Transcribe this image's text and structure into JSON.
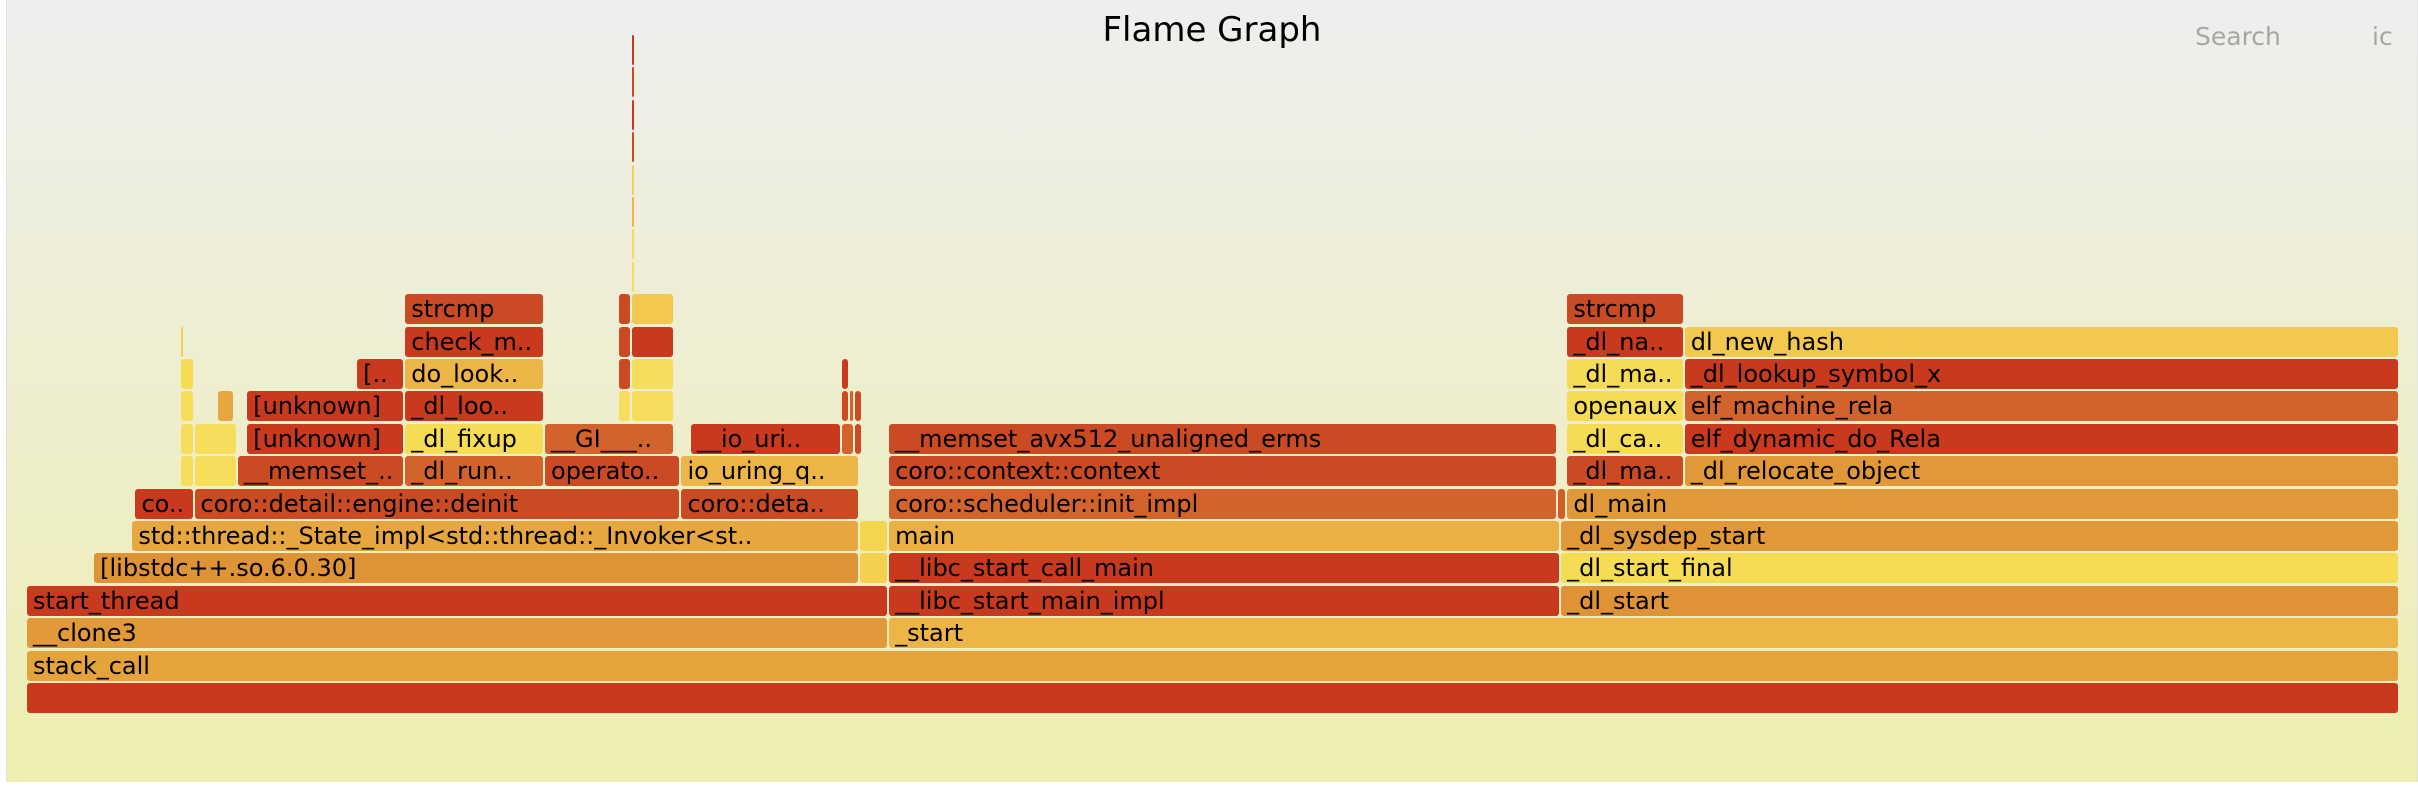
{
  "title": "Flame Graph",
  "search_label": "Search",
  "ic_label": "ic",
  "colors": {
    "background_top": "#eeeeee",
    "background_bottom": "#eeeeb0"
  },
  "frames": [
    {
      "label": "",
      "depth": 0,
      "start": 0,
      "end": 1.0,
      "color": "#c9391d"
    },
    {
      "label": "stack_call",
      "depth": 1,
      "start": 0,
      "end": 1.0,
      "color": "#e5a33c"
    },
    {
      "label": "__clone3",
      "depth": 2,
      "start": 0,
      "end": 0.3633,
      "color": "#e1993a"
    },
    {
      "label": "_start",
      "depth": 2,
      "start": 0.3633,
      "end": 1.0,
      "color": "#edb545"
    },
    {
      "label": "start_thread",
      "depth": 3,
      "start": 0,
      "end": 0.3633,
      "color": "#c9391d"
    },
    {
      "label": "__libc_start_main_impl",
      "depth": 3,
      "start": 0.3633,
      "end": 0.6465,
      "color": "#c9391d"
    },
    {
      "label": "_dl_start",
      "depth": 3,
      "start": 0.6465,
      "end": 1.0,
      "color": "#e09336"
    },
    {
      "label": "[libstdc++.so.6.0.30]",
      "depth": 4,
      "start": 0.0283,
      "end": 0.3509,
      "color": "#df9337"
    },
    {
      "label": "",
      "depth": 4,
      "start": 0.3509,
      "end": 0.3633,
      "color": "#f3d14f"
    },
    {
      "label": "__libc_start_call_main",
      "depth": 4,
      "start": 0.3633,
      "end": 0.6465,
      "color": "#c9391d"
    },
    {
      "label": "_dl_start_final",
      "depth": 4,
      "start": 0.6465,
      "end": 1.0,
      "color": "#f6dc55"
    },
    {
      "label": "std::thread::_State_impl<std::thread::_Invoker<st..",
      "depth": 5,
      "start": 0.0444,
      "end": 0.3509,
      "color": "#e6a640"
    },
    {
      "label": "",
      "depth": 5,
      "start": 0.3509,
      "end": 0.3633,
      "color": "#f4d54f"
    },
    {
      "label": "main",
      "depth": 5,
      "start": 0.3633,
      "end": 0.6465,
      "color": "#ebb043"
    },
    {
      "label": "_dl_sysdep_start",
      "depth": 5,
      "start": 0.6465,
      "end": 1.0,
      "color": "#e19839"
    },
    {
      "label": "co..",
      "depth": 6,
      "start": 0.0457,
      "end": 0.0706,
      "color": "#c9391d"
    },
    {
      "label": "coro::detail::engine::deinit",
      "depth": 6,
      "start": 0.0706,
      "end": 0.2758,
      "color": "#ca4a24"
    },
    {
      "label": "coro::deta..",
      "depth": 6,
      "start": 0.2758,
      "end": 0.3509,
      "color": "#ca4a24"
    },
    {
      "label": "coro::scheduler::init_impl",
      "depth": 6,
      "start": 0.3633,
      "end": 0.6452,
      "color": "#d2632c"
    },
    {
      "label": "",
      "depth": 6,
      "start": 0.6452,
      "end": 0.6491,
      "color": "#d45c2b"
    },
    {
      "label": "dl_main",
      "depth": 6,
      "start": 0.6491,
      "end": 1.0,
      "color": "#e19838"
    },
    {
      "label": "",
      "depth": 7,
      "start": 0.0647,
      "end": 0.0706,
      "color": "#f7dd5c"
    },
    {
      "label": "",
      "depth": 7,
      "start": 0.0706,
      "end": 0.0889,
      "color": "#f7dd5c"
    },
    {
      "label": "__memset_..",
      "depth": 7,
      "start": 0.0889,
      "end": 0.1594,
      "color": "#ca4a24"
    },
    {
      "label": "_dl_run..",
      "depth": 7,
      "start": 0.1594,
      "end": 0.2183,
      "color": "#d2632c"
    },
    {
      "label": "operato..",
      "depth": 7,
      "start": 0.2183,
      "end": 0.2758,
      "color": "#ca4a24"
    },
    {
      "label": "io_uring_q..",
      "depth": 7,
      "start": 0.2758,
      "end": 0.3509,
      "color": "#edb545"
    },
    {
      "label": "coro::context::context",
      "depth": 7,
      "start": 0.3633,
      "end": 0.6452,
      "color": "#ca4a24"
    },
    {
      "label": "_dl_ma..",
      "depth": 7,
      "start": 0.6491,
      "end": 0.6986,
      "color": "#ca4a24"
    },
    {
      "label": "_dl_relocate_object",
      "depth": 7,
      "start": 0.6986,
      "end": 1.0,
      "color": "#e19838"
    },
    {
      "label": "",
      "depth": 8,
      "start": 0.0647,
      "end": 0.0706,
      "color": "#f7dd5c"
    },
    {
      "label": "",
      "depth": 8,
      "start": 0.0706,
      "end": 0.0889,
      "color": "#f7dd5c"
    },
    {
      "label": "[unknown]",
      "depth": 8,
      "start": 0.0928,
      "end": 0.1594,
      "color": "#c9391d"
    },
    {
      "label": "_dl_fixup",
      "depth": 8,
      "start": 0.1594,
      "end": 0.2183,
      "color": "#f6dc55"
    },
    {
      "label": "__GI___..",
      "depth": 8,
      "start": 0.2183,
      "end": 0.2732,
      "color": "#d2632c"
    },
    {
      "label": "__io_uri..",
      "depth": 8,
      "start": 0.2798,
      "end": 0.3436,
      "color": "#c9391d"
    },
    {
      "label": "",
      "depth": 8,
      "start": 0.3436,
      "end": 0.349,
      "color": "#d2632c"
    },
    {
      "label": "",
      "depth": 8,
      "start": 0.349,
      "end": 0.3523,
      "color": "#ca4a24"
    },
    {
      "label": "__memset_avx512_unaligned_erms",
      "depth": 8,
      "start": 0.3633,
      "end": 0.6452,
      "color": "#ca4a24"
    },
    {
      "label": "_dl_ca..",
      "depth": 8,
      "start": 0.6491,
      "end": 0.6986,
      "color": "#f6dc55"
    },
    {
      "label": "elf_dynamic_do_Rela",
      "depth": 8,
      "start": 0.6986,
      "end": 1.0,
      "color": "#c9391d"
    },
    {
      "label": "",
      "depth": 9,
      "start": 0.0647,
      "end": 0.0706,
      "color": "#f7dd5c"
    },
    {
      "label": "",
      "depth": 9,
      "start": 0.0804,
      "end": 0.0876,
      "color": "#e6a640"
    },
    {
      "label": "[unknown]",
      "depth": 9,
      "start": 0.0928,
      "end": 0.1594,
      "color": "#c9391d"
    },
    {
      "label": "_dl_loo..",
      "depth": 9,
      "start": 0.1594,
      "end": 0.2183,
      "color": "#c9391d"
    },
    {
      "label": "",
      "depth": 9,
      "start": 0.2496,
      "end": 0.2549,
      "color": "#f7dd5c"
    },
    {
      "label": "",
      "depth": 9,
      "start": 0.2549,
      "end": 0.2732,
      "color": "#f7dd5c"
    },
    {
      "label": "",
      "depth": 9,
      "start": 0.3436,
      "end": 0.347,
      "color": "#ca4a24"
    },
    {
      "label": "",
      "depth": 9,
      "start": 0.347,
      "end": 0.349,
      "color": "#d2632c"
    },
    {
      "label": "",
      "depth": 9,
      "start": 0.349,
      "end": 0.3523,
      "color": "#ca4a24"
    },
    {
      "label": "openaux",
      "depth": 9,
      "start": 0.6491,
      "end": 0.6986,
      "color": "#f6dc55"
    },
    {
      "label": "elf_machine_rela",
      "depth": 9,
      "start": 0.6986,
      "end": 1.0,
      "color": "#d2632c"
    },
    {
      "label": "",
      "depth": 10,
      "start": 0.0647,
      "end": 0.0706,
      "color": "#f6dc55"
    },
    {
      "label": "[..",
      "depth": 10,
      "start": 0.1391,
      "end": 0.1594,
      "color": "#c9391d"
    },
    {
      "label": "do_look..",
      "depth": 10,
      "start": 0.1594,
      "end": 0.2183,
      "color": "#edb545"
    },
    {
      "label": "",
      "depth": 10,
      "start": 0.2496,
      "end": 0.2549,
      "color": "#ca4a24"
    },
    {
      "label": "",
      "depth": 10,
      "start": 0.2549,
      "end": 0.2732,
      "color": "#f7dd5c"
    },
    {
      "label": "",
      "depth": 10,
      "start": 0.3436,
      "end": 0.347,
      "color": "#c9391d"
    },
    {
      "label": "_dl_ma..",
      "depth": 10,
      "start": 0.6491,
      "end": 0.6986,
      "color": "#f6dc55"
    },
    {
      "label": "_dl_lookup_symbol_x",
      "depth": 10,
      "start": 0.6986,
      "end": 1.0,
      "color": "#c9391d"
    },
    {
      "label": "",
      "depth": 11,
      "start": 0.0647,
      "end": 0.066,
      "color": "#f3d14f"
    },
    {
      "label": "check_m..",
      "depth": 11,
      "start": 0.1594,
      "end": 0.2183,
      "color": "#c9391d"
    },
    {
      "label": "",
      "depth": 11,
      "start": 0.2496,
      "end": 0.2549,
      "color": "#ca4a24"
    },
    {
      "label": "",
      "depth": 11,
      "start": 0.2549,
      "end": 0.2732,
      "color": "#c9391d"
    },
    {
      "label": "_dl_na..",
      "depth": 11,
      "start": 0.6491,
      "end": 0.6986,
      "color": "#c9391d"
    },
    {
      "label": "dl_new_hash",
      "depth": 11,
      "start": 0.6986,
      "end": 1.0,
      "color": "#f3c84e"
    },
    {
      "label": "strcmp",
      "depth": 12,
      "start": 0.1594,
      "end": 0.2183,
      "color": "#ca4a24"
    },
    {
      "label": "",
      "depth": 12,
      "start": 0.2496,
      "end": 0.2549,
      "color": "#ca4a24"
    },
    {
      "label": "",
      "depth": 12,
      "start": 0.2549,
      "end": 0.2732,
      "color": "#f3c84e"
    },
    {
      "label": "strcmp",
      "depth": 12,
      "start": 0.6491,
      "end": 0.6986,
      "color": "#ca4a24"
    },
    {
      "label": "",
      "depth": 13,
      "start": 0.2549,
      "end": 0.2562,
      "color": "#f6dc55"
    },
    {
      "label": "",
      "depth": 14,
      "start": 0.2549,
      "end": 0.2562,
      "color": "#f6dc55"
    },
    {
      "label": "",
      "depth": 15,
      "start": 0.2549,
      "end": 0.2562,
      "color": "#edb545"
    },
    {
      "label": "",
      "depth": 16,
      "start": 0.2549,
      "end": 0.2562,
      "color": "#f3d14f"
    },
    {
      "label": "",
      "depth": 17,
      "start": 0.2549,
      "end": 0.2562,
      "color": "#ca4a24"
    },
    {
      "label": "",
      "depth": 18,
      "start": 0.2549,
      "end": 0.2562,
      "color": "#c9391d"
    },
    {
      "label": "",
      "depth": 19,
      "start": 0.2549,
      "end": 0.2562,
      "color": "#ca4a24"
    },
    {
      "label": "",
      "depth": 20,
      "start": 0.2549,
      "end": 0.2562,
      "color": "#c9391d"
    }
  ]
}
